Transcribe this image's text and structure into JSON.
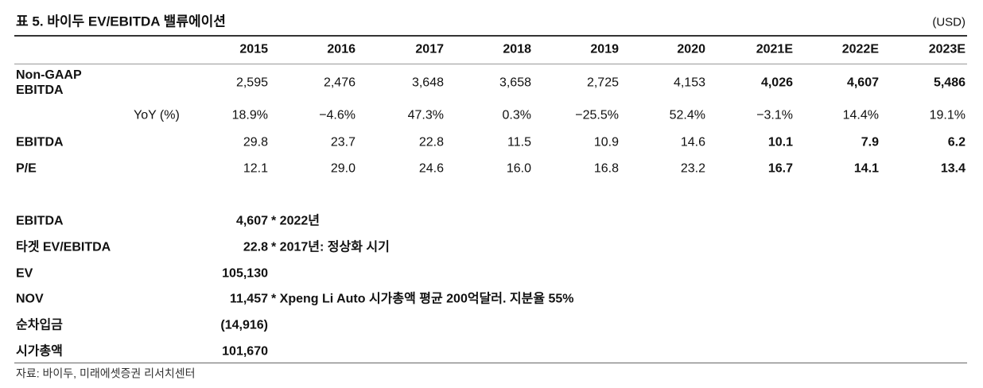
{
  "title": "표 5. 바이두 EV/EBITDA 밸류에이션",
  "unit": "(USD)",
  "table": {
    "columns": [
      "2015",
      "2016",
      "2017",
      "2018",
      "2019",
      "2020",
      "2021E",
      "2022E",
      "2023E"
    ],
    "rows": [
      {
        "label": "Non-GAAP EBITDA",
        "values": [
          "2,595",
          "2,476",
          "3,648",
          "3,658",
          "2,725",
          "4,153",
          "4,026",
          "4,607",
          "5,486"
        ]
      },
      {
        "label": "YoY (%)",
        "values": [
          "18.9%",
          "−4.6%",
          "47.3%",
          "0.3%",
          "−25.5%",
          "52.4%",
          "−3.1%",
          "14.4%",
          "19.1%"
        ]
      },
      {
        "label": "EBITDA",
        "values": [
          "29.8",
          "23.7",
          "22.8",
          "11.5",
          "10.9",
          "14.6",
          "10.1",
          "7.9",
          "6.2"
        ]
      },
      {
        "label": "P/E",
        "values": [
          "12.1",
          "29.0",
          "24.6",
          "16.0",
          "16.8",
          "23.2",
          "16.7",
          "14.1",
          "13.4"
        ]
      }
    ]
  },
  "valuation": [
    {
      "label": "EBITDA",
      "value": "4,607",
      "note": "* 2022년"
    },
    {
      "label": "타겟 EV/EBITDA",
      "value": "22.8",
      "note": "* 2017년: 정상화 시기"
    },
    {
      "label": "EV",
      "value": "105,130"
    },
    {
      "label": "NOV",
      "value": "11,457",
      "note": "* Xpeng Li Auto 시가총액 평균 200억달러. 지분율 55%"
    },
    {
      "label": "순차입금",
      "value": "(14,916)"
    },
    {
      "label": "시가총액",
      "value": "101,670"
    }
  ],
  "source": "자료: 바이두, 미래에셋증권 리서치센터"
}
